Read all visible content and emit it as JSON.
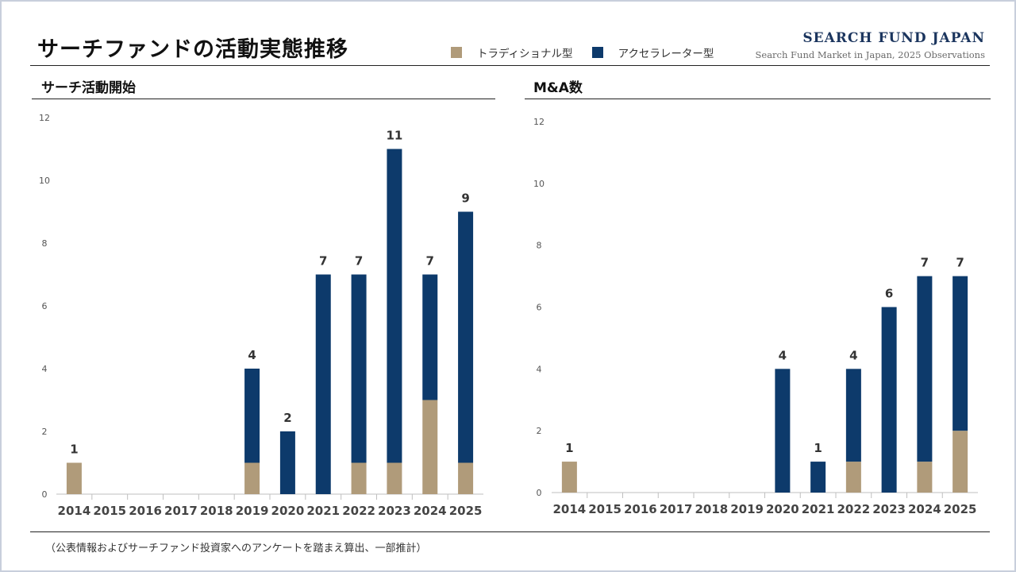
{
  "title": "サーチファンドの活動実態推移",
  "brand": {
    "name": "SEARCH FUND JAPAN",
    "subtitle": "Search Fund Market in Japan, 2025 Observations"
  },
  "legend": [
    {
      "label": "トラディショナル型",
      "color": "#b09b7a"
    },
    {
      "label": "アクセラレーター型",
      "color": "#0d3a6b"
    }
  ],
  "footer": "（公表情報およびサーチファンド投資家へのアンケートを踏まえ算出、一部推計）",
  "chart_data": [
    {
      "type": "bar",
      "stacked": true,
      "title": "サーチ活動開始",
      "categories": [
        "2014",
        "2015",
        "2016",
        "2017",
        "2018",
        "2019",
        "2020",
        "2021",
        "2022",
        "2023",
        "2024",
        "2025"
      ],
      "series": [
        {
          "name": "トラディショナル型",
          "values": [
            1,
            0,
            0,
            0,
            0,
            1,
            0,
            0,
            1,
            1,
            3,
            1
          ]
        },
        {
          "name": "アクセラレーター型",
          "values": [
            0,
            0,
            0,
            0,
            0,
            3,
            2,
            7,
            6,
            10,
            4,
            8
          ]
        }
      ],
      "totals": [
        1,
        null,
        null,
        null,
        null,
        4,
        2,
        7,
        7,
        11,
        7,
        9
      ],
      "yticks": [
        "0",
        "2",
        "4",
        "6",
        "8",
        "10",
        "12"
      ],
      "ylim": [
        0,
        12
      ],
      "grid": false,
      "legend": "top"
    },
    {
      "type": "bar",
      "stacked": true,
      "title": "M&A数",
      "categories": [
        "2014",
        "2015",
        "2016",
        "2017",
        "2018",
        "2019",
        "2020",
        "2021",
        "2022",
        "2023",
        "2024",
        "2025"
      ],
      "series": [
        {
          "name": "トラディショナル型",
          "values": [
            1,
            0,
            0,
            0,
            0,
            0,
            0,
            0,
            1,
            0,
            1,
            2
          ]
        },
        {
          "name": "アクセラレーター型",
          "values": [
            0,
            0,
            0,
            0,
            0,
            0,
            4,
            1,
            3,
            6,
            6,
            5
          ]
        }
      ],
      "totals": [
        1,
        null,
        null,
        null,
        null,
        null,
        4,
        1,
        4,
        6,
        7,
        7
      ],
      "yticks": [
        "0",
        "2",
        "4",
        "6",
        "8",
        "10",
        "12"
      ],
      "ylim": [
        0,
        12
      ],
      "grid": false,
      "legend": "top"
    }
  ]
}
